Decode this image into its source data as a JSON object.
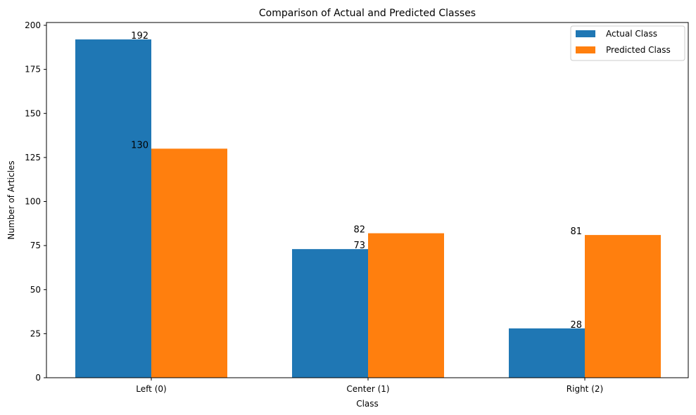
{
  "chart_data": {
    "type": "bar",
    "title": "Comparison of Actual and Predicted Classes",
    "xlabel": "Class",
    "ylabel": "Number of Articles",
    "categories": [
      "Left (0)",
      "Center (1)",
      "Right (2)"
    ],
    "series": [
      {
        "name": "Actual Class",
        "values": [
          192,
          73,
          28
        ],
        "color": "#1f77b4"
      },
      {
        "name": "Predicted Class",
        "values": [
          130,
          82,
          81
        ],
        "color": "#ff7f0e"
      }
    ],
    "ylim": [
      0,
      201.6
    ],
    "yticks": [
      0,
      25,
      50,
      75,
      100,
      125,
      150,
      175,
      200
    ],
    "grid": false,
    "legend": "top-right"
  }
}
